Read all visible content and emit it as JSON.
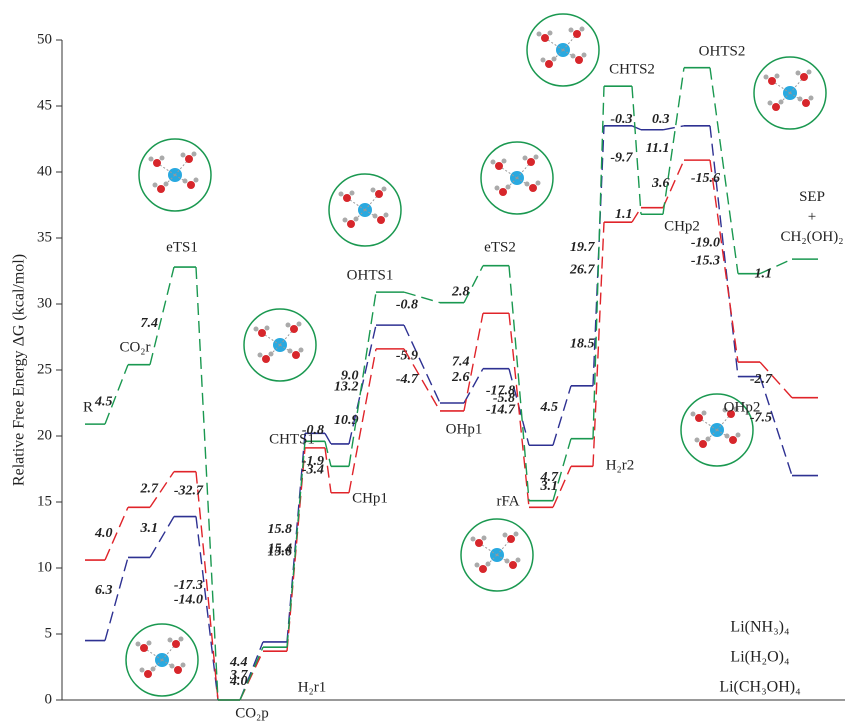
{
  "chart_data": {
    "type": "energy-profile",
    "ylabel": "Relative Free Energy ΔG (kcal/mol)",
    "ylim": [
      0,
      50
    ],
    "yticks": [
      0,
      5,
      10,
      15,
      20,
      25,
      30,
      35,
      40,
      45,
      50
    ],
    "categories": [
      "R",
      "CO₂r",
      "eTS1",
      "CO₂p",
      "H₂r1",
      "CHTS1",
      "CHp1",
      "OHTS1",
      "OHp1",
      "eTS2",
      "rFA",
      "H₂r2",
      "CHTS2",
      "CHp2",
      "OHTS2",
      "OHp2",
      "SEP + CH₂(OH)₂"
    ],
    "series": [
      {
        "name": "Li(NH₃)₄",
        "color": "#2e3192",
        "values": [
          4.5,
          10.8,
          13.9,
          0,
          4.4,
          20.2,
          19.4,
          28.4,
          22.5,
          25.1,
          19.3,
          23.8,
          43.5,
          43.2,
          43.5,
          24.5,
          17.0
        ],
        "step_labels": [
          "6.3",
          "3.1",
          "-14.0",
          "4.4",
          "15.8",
          "-0.8",
          "9.0",
          "-5.9",
          "2.6",
          "-5.8",
          "4.5",
          "19.7",
          "-0.3",
          "0.3",
          "-19.0",
          "-7.5"
        ]
      },
      {
        "name": "Li(H₂O)₄",
        "color": "#e0242a",
        "values": [
          10.6,
          14.6,
          17.3,
          0,
          3.7,
          19.1,
          15.7,
          26.6,
          21.9,
          29.3,
          14.6,
          17.7,
          36.2,
          37.3,
          40.9,
          25.6,
          22.9
        ],
        "step_labels": [
          "4.0",
          "2.7",
          "-17.3",
          "3.7",
          "15.4",
          "-3.4",
          "10.9",
          "-4.7",
          "7.4",
          "-14.7",
          "3.1",
          "18.5",
          "1.1",
          "3.6",
          "-15.3",
          "-2.7"
        ]
      },
      {
        "name": "Li(CH₃OH)₄",
        "color": "#1a9850",
        "values": [
          20.9,
          25.4,
          32.8,
          0,
          4.0,
          19.6,
          17.7,
          30.9,
          30.1,
          32.9,
          15.1,
          19.8,
          46.5,
          36.8,
          47.9,
          32.3,
          33.4
        ],
        "step_labels": [
          "4.5",
          "7.4",
          "-32.7",
          "4.0",
          "15.6",
          "-1.9",
          "13.2",
          "-0.8",
          "2.8",
          "-17.8",
          "4.7",
          "26.7",
          "-9.7",
          "11.1",
          "-15.6",
          "1.1"
        ]
      }
    ]
  }
}
